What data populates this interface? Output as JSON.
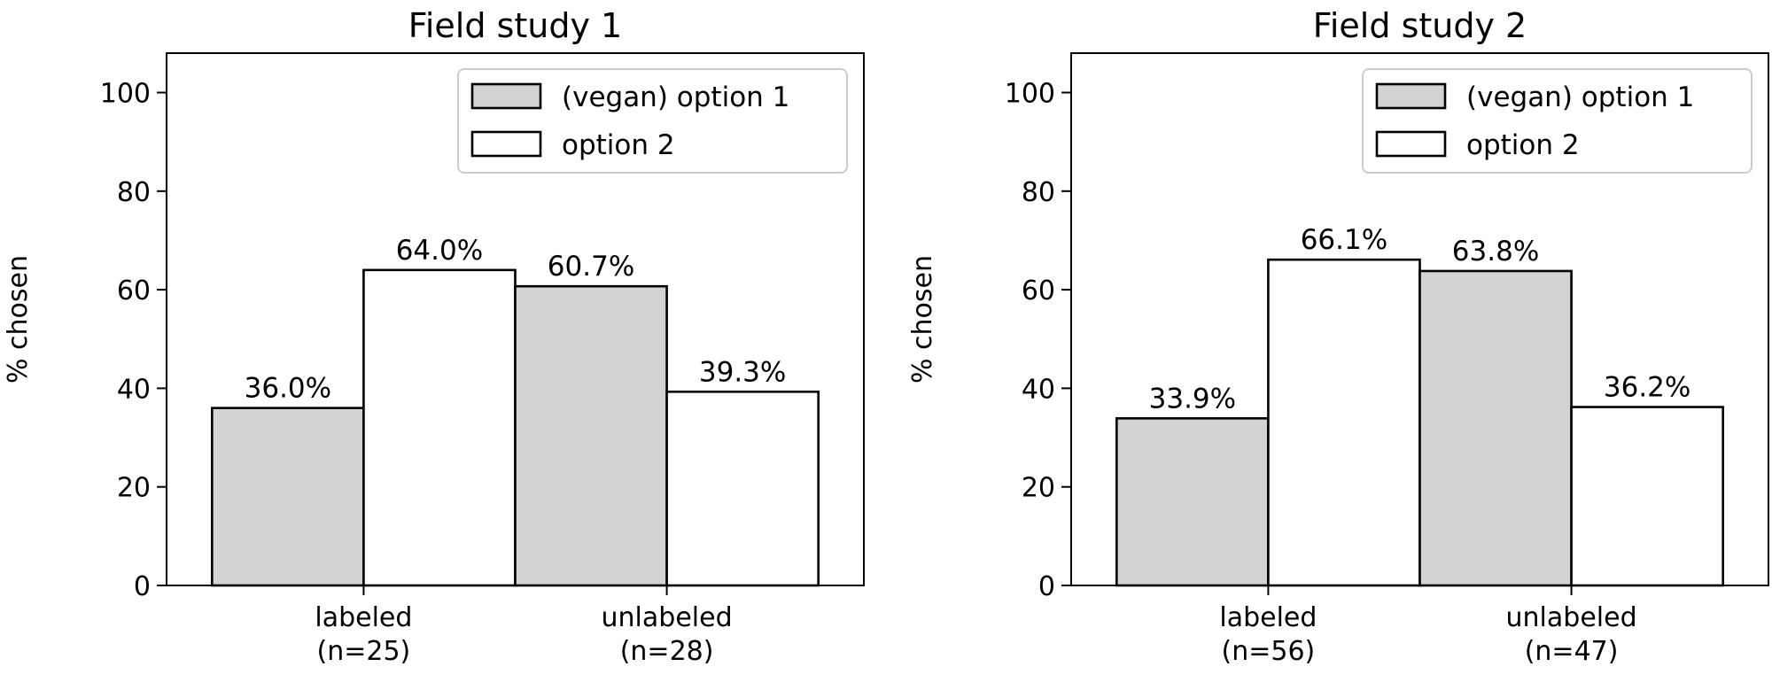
{
  "chart_data": [
    {
      "type": "bar",
      "title": "Field study 1",
      "ylabel": "% chosen",
      "xlabel": "",
      "ylim": [
        0,
        108
      ],
      "yticks": [
        0,
        20,
        40,
        60,
        80,
        100
      ],
      "categories": [
        "labeled\n(n=25)",
        "unlabeled\n(n=28)"
      ],
      "series": [
        {
          "name": "(vegan) option 1",
          "values": [
            36.0,
            60.7
          ],
          "labels": [
            "36.0%",
            "60.7%"
          ],
          "color": "#d3d3d3"
        },
        {
          "name": "option 2",
          "values": [
            64.0,
            39.3
          ],
          "labels": [
            "64.0%",
            "39.3%"
          ],
          "color": "#ffffff"
        }
      ],
      "legend": "top-right",
      "grid": false
    },
    {
      "type": "bar",
      "title": "Field study 2",
      "ylabel": "% chosen",
      "xlabel": "",
      "ylim": [
        0,
        108
      ],
      "yticks": [
        0,
        20,
        40,
        60,
        80,
        100
      ],
      "categories": [
        "labeled\n(n=56)",
        "unlabeled\n(n=47)"
      ],
      "series": [
        {
          "name": "(vegan) option 1",
          "values": [
            33.9,
            63.8
          ],
          "labels": [
            "33.9%",
            "63.8%"
          ],
          "color": "#d3d3d3"
        },
        {
          "name": "option 2",
          "values": [
            66.1,
            36.2
          ],
          "labels": [
            "66.1%",
            "36.2%"
          ],
          "color": "#ffffff"
        }
      ],
      "legend": "top-right",
      "grid": false
    }
  ]
}
